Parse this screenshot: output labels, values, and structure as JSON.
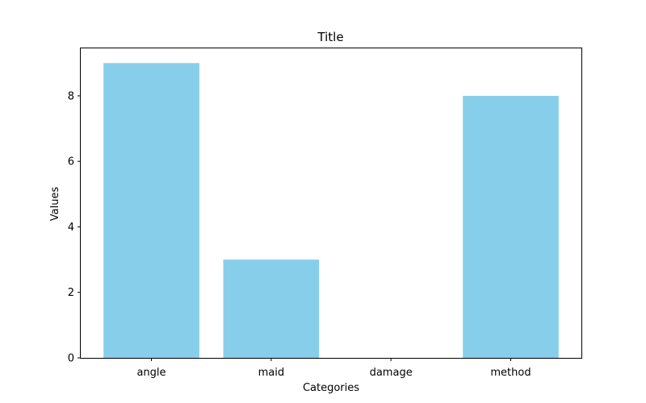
{
  "chart_data": {
    "type": "bar",
    "title": "Title",
    "xlabel": "Categories",
    "ylabel": "Values",
    "categories": [
      "angle",
      "maid",
      "damage",
      "method"
    ],
    "values": [
      9,
      3,
      0,
      8
    ],
    "ylim": [
      0,
      9.45
    ],
    "yticks": [
      0,
      2,
      4,
      6,
      8
    ],
    "bar_color": "#87CEEB",
    "grid": false,
    "legend": false
  }
}
